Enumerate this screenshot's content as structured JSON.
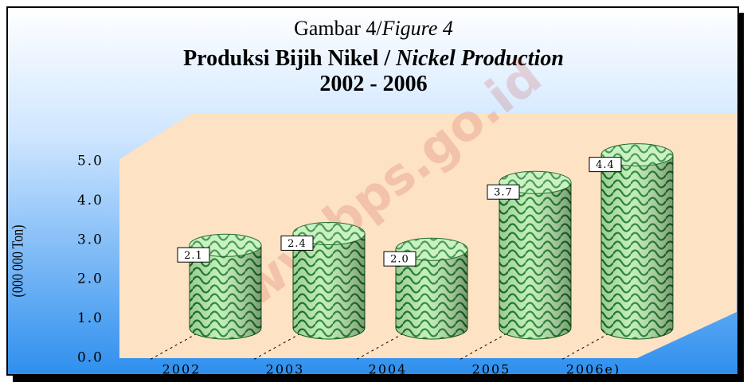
{
  "chart_data": {
    "type": "bar",
    "title_lines": [
      {
        "plain": "Gambar 4/",
        "italic": "Figure 4"
      },
      {
        "plain": "Produksi Bijih Nikel / ",
        "italic": "Nickel Production"
      },
      {
        "plain": "2002 - 2006"
      }
    ],
    "y_axis_label": "(000 000 Ton)",
    "watermark": "www.bps.go.id",
    "categories": [
      "2002",
      "2003",
      "2004",
      "2005",
      "2006e)"
    ],
    "values": [
      2.1,
      2.4,
      2.0,
      3.7,
      4.4
    ],
    "value_labels": [
      "2.1",
      "2.4",
      "2.0",
      "3.7",
      "4.4"
    ],
    "color": "#3a9a3a",
    "ylim": [
      0,
      5
    ],
    "yticks": [
      {
        "value": 0,
        "label": "0.0"
      },
      {
        "value": 1,
        "label": "1.0"
      },
      {
        "value": 2,
        "label": "2.0"
      },
      {
        "value": 3,
        "label": "3.0"
      },
      {
        "value": 4,
        "label": "4.0"
      },
      {
        "value": 5,
        "label": "5.0"
      }
    ]
  }
}
